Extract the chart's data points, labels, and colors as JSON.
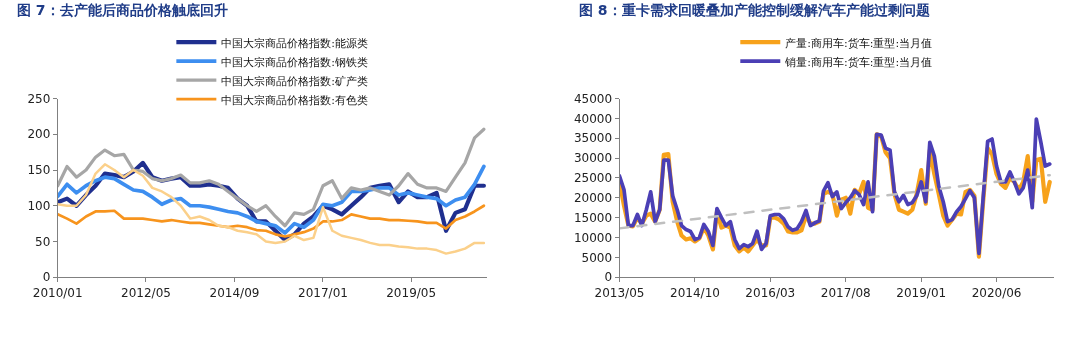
{
  "chart_data": [
    {
      "type": "line",
      "title": "图 7：去产能后商品价格触底回升",
      "legend": "top",
      "grid": false,
      "marker": "none",
      "line_style": "solid",
      "x": [
        "2010-01",
        "2010-04",
        "2010-07",
        "2010-10",
        "2011-01",
        "2011-04",
        "2011-07",
        "2011-10",
        "2012-01",
        "2012-04",
        "2012-07",
        "2012-10",
        "2013-01",
        "2013-04",
        "2013-07",
        "2013-10",
        "2014-01",
        "2014-04",
        "2014-07",
        "2014-10",
        "2015-01",
        "2015-04",
        "2015-07",
        "2015-10",
        "2016-01",
        "2016-04",
        "2016-07",
        "2016-10",
        "2017-01",
        "2017-04",
        "2017-07",
        "2017-10",
        "2018-01",
        "2018-04",
        "2018-07",
        "2018-10",
        "2019-01",
        "2019-04",
        "2019-07",
        "2019-10",
        "2020-01",
        "2020-04",
        "2020-07",
        "2020-10",
        "2021-01",
        "2021-04"
      ],
      "xlim": [
        "2010-01",
        "2021-05"
      ],
      "xticks": [
        {
          "value": "2010-01",
          "label": "2010/01"
        },
        {
          "value": "2012-05",
          "label": "2012/05"
        },
        {
          "value": "2014-09",
          "label": "2014/09"
        },
        {
          "value": "2017-01",
          "label": "2017/01"
        },
        {
          "value": "2019-05",
          "label": "2019/05"
        }
      ],
      "ylim": [
        0,
        250
      ],
      "yticks": [
        0,
        50,
        100,
        150,
        200,
        250
      ],
      "series": [
        {
          "name": "中国大宗商品价格指数:能源类",
          "color": "#1f2f8f",
          "values": [
            105,
            110,
            100,
            115,
            128,
            145,
            143,
            140,
            148,
            160,
            140,
            135,
            138,
            140,
            128,
            128,
            130,
            128,
            125,
            110,
            100,
            78,
            78,
            65,
            52,
            60,
            75,
            85,
            100,
            95,
            88,
            100,
            112,
            125,
            128,
            130,
            105,
            120,
            112,
            112,
            118,
            65,
            90,
            95,
            128,
            128
          ]
        },
        {
          "name": "中国大宗商品价格指数:钢铁类",
          "color": "#3d8ef0",
          "values": [
            113,
            130,
            118,
            128,
            135,
            140,
            138,
            130,
            122,
            120,
            112,
            102,
            108,
            110,
            100,
            100,
            98,
            95,
            92,
            90,
            85,
            78,
            75,
            72,
            62,
            75,
            70,
            80,
            102,
            100,
            105,
            120,
            120,
            122,
            125,
            125,
            115,
            118,
            115,
            112,
            110,
            100,
            108,
            112,
            130,
            155
          ]
        },
        {
          "name": "中国大宗商品价格指数:矿产类",
          "color": "#a6a6a6",
          "values": [
            128,
            155,
            140,
            150,
            168,
            178,
            170,
            172,
            150,
            148,
            138,
            135,
            138,
            143,
            132,
            132,
            135,
            130,
            120,
            110,
            100,
            92,
            100,
            85,
            72,
            90,
            88,
            95,
            128,
            135,
            110,
            125,
            122,
            125,
            120,
            115,
            128,
            145,
            130,
            125,
            125,
            120,
            140,
            160,
            195,
            207
          ]
        },
        {
          "name": "中国大宗商品价格指数:有色类",
          "color": "#f7941d",
          "values": [
            88,
            82,
            75,
            85,
            92,
            92,
            93,
            82,
            82,
            82,
            80,
            78,
            80,
            78,
            76,
            76,
            74,
            72,
            70,
            72,
            70,
            66,
            65,
            60,
            57,
            60,
            63,
            68,
            78,
            78,
            80,
            88,
            85,
            82,
            82,
            80,
            80,
            79,
            78,
            76,
            76,
            68,
            80,
            85,
            92,
            100
          ]
        },
        {
          "color": "#fbd08a",
          "values": [
            102,
            100,
            100,
            115,
            145,
            158,
            150,
            140,
            150,
            142,
            125,
            120,
            112,
            100,
            82,
            85,
            80,
            72,
            70,
            65,
            63,
            60,
            50,
            48,
            50,
            58,
            52,
            55,
            98,
            65,
            58,
            55,
            52,
            48,
            45,
            45,
            43,
            42,
            40,
            40,
            38,
            33,
            36,
            40,
            48,
            48
          ]
        }
      ]
    },
    {
      "type": "line",
      "title": "图 8：重卡需求回暖叠加产能控制缓解汽车产能过剩问题",
      "legend": "top",
      "grid": false,
      "marker": "none",
      "x": [
        "2013-05",
        "2013-06",
        "2013-07",
        "2013-08",
        "2013-09",
        "2013-10",
        "2013-11",
        "2013-12",
        "2014-01",
        "2014-02",
        "2014-03",
        "2014-04",
        "2014-05",
        "2014-06",
        "2014-07",
        "2014-08",
        "2014-09",
        "2014-10",
        "2014-11",
        "2014-12",
        "2015-01",
        "2015-02",
        "2015-03",
        "2015-04",
        "2015-05",
        "2015-06",
        "2015-07",
        "2015-08",
        "2015-09",
        "2015-10",
        "2015-11",
        "2015-12",
        "2016-01",
        "2016-02",
        "2016-03",
        "2016-04",
        "2016-05",
        "2016-06",
        "2016-07",
        "2016-08",
        "2016-09",
        "2016-10",
        "2016-11",
        "2016-12",
        "2017-01",
        "2017-02",
        "2017-03",
        "2017-04",
        "2017-05",
        "2017-06",
        "2017-07",
        "2017-08",
        "2017-09",
        "2017-10",
        "2017-11",
        "2017-12",
        "2018-01",
        "2018-02",
        "2018-03",
        "2018-04",
        "2018-05",
        "2018-06",
        "2018-07",
        "2018-08",
        "2018-09",
        "2018-10",
        "2018-11",
        "2018-12",
        "2019-01",
        "2019-02",
        "2019-03",
        "2019-04",
        "2019-05",
        "2019-06",
        "2019-07",
        "2019-08",
        "2019-09",
        "2019-10",
        "2019-11",
        "2019-12",
        "2020-01",
        "2020-02",
        "2020-03",
        "2020-04",
        "2020-05",
        "2020-06",
        "2020-07",
        "2020-08",
        "2020-09",
        "2020-10",
        "2020-11",
        "2020-12",
        "2021-01",
        "2021-02",
        "2021-03",
        "2021-04",
        "2021-05",
        "2021-06"
      ],
      "xlim": [
        "2013-05",
        "2021-07"
      ],
      "xticks": [
        {
          "value": "2013-05",
          "label": "2013/05"
        },
        {
          "value": "2014-10",
          "label": "2014/10"
        },
        {
          "value": "2016-03",
          "label": "2016/03"
        },
        {
          "value": "2017-08",
          "label": "2017/08"
        },
        {
          "value": "2019-01",
          "label": "2019/01"
        },
        {
          "value": "2020-06",
          "label": "2020/06"
        }
      ],
      "ylim": [
        0,
        45000
      ],
      "yticks": [
        0,
        5000,
        10000,
        15000,
        20000,
        25000,
        30000,
        35000,
        40000,
        45000
      ],
      "series": [
        {
          "name": "产量:商用车:货车:重型:当月值",
          "color": "#f7a21b",
          "values": [
            24000,
            18000,
            13000,
            12800,
            15000,
            13500,
            15500,
            16000,
            14000,
            17000,
            30800,
            31000,
            19000,
            14000,
            10500,
            9500,
            9800,
            9000,
            9800,
            12500,
            10500,
            7000,
            16500,
            12500,
            13000,
            12500,
            8000,
            6500,
            7500,
            6500,
            8000,
            9500,
            8000,
            8000,
            15000,
            15000,
            14500,
            13500,
            11500,
            11300,
            11300,
            11800,
            15500,
            13500,
            13500,
            14000,
            21000,
            21500,
            21000,
            15500,
            19500,
            20000,
            16000,
            22000,
            21000,
            24000,
            17500,
            17000,
            36000,
            35500,
            31500,
            30000,
            21000,
            17000,
            16500,
            16000,
            17000,
            21000,
            27000,
            18500,
            32000,
            26000,
            21000,
            15500,
            13000,
            14500,
            16000,
            15800,
            21500,
            22000,
            20500,
            5200,
            19000,
            32500,
            31000,
            26000,
            23500,
            22500,
            25000,
            24000,
            22000,
            24000,
            30500,
            19000,
            29500,
            29800,
            19000,
            24000
          ]
        },
        {
          "name": "销量:商用车:货车:重型:当月值",
          "color": "#4b3fb5",
          "values": [
            25500,
            22000,
            13000,
            13000,
            15800,
            13000,
            17000,
            21500,
            14000,
            17000,
            29500,
            29500,
            20500,
            17000,
            13000,
            12000,
            11500,
            9500,
            10000,
            13300,
            11500,
            8000,
            17300,
            15000,
            13000,
            14000,
            9500,
            7200,
            8200,
            7700,
            8500,
            11600,
            7000,
            8500,
            15500,
            15800,
            15800,
            14700,
            12700,
            11800,
            12200,
            14000,
            16800,
            13000,
            13700,
            14200,
            21700,
            23800,
            20300,
            21500,
            17300,
            18800,
            20000,
            21800,
            20800,
            18300,
            24000,
            16500,
            36000,
            35800,
            32500,
            32000,
            21500,
            19000,
            20600,
            18300,
            18800,
            20500,
            24000,
            19000,
            34000,
            30500,
            23000,
            19000,
            14000,
            14500,
            16500,
            17800,
            19800,
            21800,
            20000,
            6000,
            20000,
            34200,
            34800,
            28000,
            24000,
            24000,
            26500,
            24000,
            21000,
            22500,
            27000,
            17500,
            39800,
            34000,
            28000,
            28500
          ]
        },
        {
          "type": "line",
          "color": "#bfbfbf",
          "line_style": "dashed",
          "x": [
            "2013-05",
            "2021-06"
          ],
          "values": [
            12300,
            25700
          ]
        }
      ]
    }
  ]
}
